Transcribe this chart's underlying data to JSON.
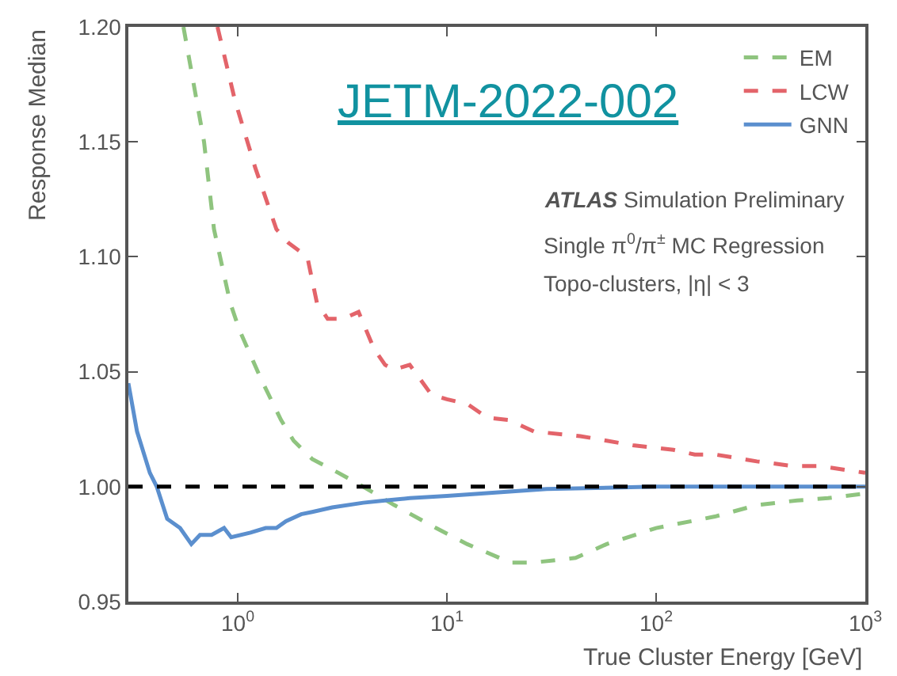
{
  "chart_data": {
    "type": "line",
    "xlabel": "True Cluster Energy [GeV]",
    "ylabel": "Response Median",
    "log": "x",
    "xlim": [
      0.3,
      1000
    ],
    "ylim": [
      0.95,
      1.2
    ],
    "xticks": [
      {
        "value": 1,
        "label": "10$^{0}$"
      },
      {
        "value": 10,
        "label": "10$^{1}$"
      },
      {
        "value": 100,
        "label": "10$^{2}$"
      },
      {
        "value": 1000,
        "label": "10$^{3}$"
      }
    ],
    "yticks": [
      {
        "value": 0.95,
        "label": "0.95"
      },
      {
        "value": 1.0,
        "label": "1.00"
      },
      {
        "value": 1.05,
        "label": "1.05"
      },
      {
        "value": 1.1,
        "label": "1.10"
      },
      {
        "value": 1.15,
        "label": "1.15"
      },
      {
        "value": 1.2,
        "label": "1.20"
      }
    ],
    "legend": "top right",
    "series": [
      {
        "name": "EM",
        "color": "#8fc47f",
        "line_style": "dashed",
        "x": [
          0.55,
          0.69,
          0.77,
          0.92,
          1.02,
          1.29,
          1.61,
          1.85,
          2.27,
          3.03,
          3.98,
          5.6,
          8.87,
          12.5,
          20.1,
          26.0,
          41.2,
          58,
          100,
          191,
          303,
          472,
          664,
          1000
        ],
        "values": [
          1.2,
          1.15,
          1.112,
          1.08,
          1.068,
          1.047,
          1.029,
          1.02,
          1.012,
          1.006,
          1.0,
          0.992,
          0.982,
          0.975,
          0.967,
          0.967,
          0.969,
          0.975,
          0.982,
          0.987,
          0.992,
          0.994,
          0.995,
          0.997
        ]
      },
      {
        "name": "LCW",
        "color": "#e3646a",
        "line_style": "dashed",
        "x": [
          0.8,
          0.97,
          1.21,
          1.53,
          1.75,
          2.15,
          2.39,
          2.69,
          3.19,
          3.78,
          4.48,
          5.06,
          5.6,
          6.64,
          8.43,
          10,
          12.5,
          15.6,
          19.8,
          26.0,
          43.4,
          77.4,
          121,
          153,
          191,
          303,
          449,
          600,
          1000
        ],
        "values": [
          1.2,
          1.168,
          1.139,
          1.112,
          1.106,
          1.1,
          1.08,
          1.073,
          1.073,
          1.076,
          1.06,
          1.053,
          1.051,
          1.053,
          1.04,
          1.038,
          1.036,
          1.03,
          1.029,
          1.024,
          1.022,
          1.018,
          1.016,
          1.014,
          1.014,
          1.011,
          1.009,
          1.009,
          1.006
        ]
      },
      {
        "name": "GNN",
        "color": "#5b8fce",
        "line_style": "solid",
        "x": [
          0.3,
          0.33,
          0.38,
          0.41,
          0.46,
          0.53,
          0.6,
          0.66,
          0.75,
          0.86,
          0.93,
          1.15,
          1.36,
          1.53,
          1.7,
          2.01,
          2.27,
          2.83,
          3.98,
          5.06,
          6.64,
          10,
          30,
          100,
          1000
        ],
        "values": [
          1.045,
          1.024,
          1.006,
          1.0,
          0.986,
          0.982,
          0.975,
          0.979,
          0.979,
          0.982,
          0.978,
          0.98,
          0.982,
          0.982,
          0.985,
          0.988,
          0.989,
          0.991,
          0.993,
          0.994,
          0.995,
          0.996,
          0.999,
          1.0,
          1.0
        ]
      }
    ],
    "ref_lines": [
      {
        "axis": "y",
        "value": 1.0,
        "color": "#000000",
        "line_style": "dashed"
      }
    ],
    "annotations": [
      "JETM-2022-002",
      "ATLAS Simulation Preliminary",
      "Single π$^{0}$/π$^{±}$ MC Regression",
      "Topo-clusters, |η| < 3"
    ]
  }
}
